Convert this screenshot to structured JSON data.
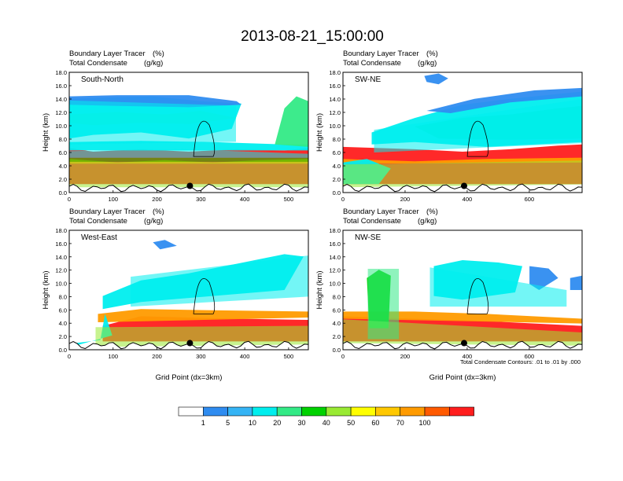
{
  "title": "2013-08-21_15:00:00",
  "colors": {
    "bands": [
      "#ffffff",
      "#2f8cf0",
      "#35b4f5",
      "#00eeee",
      "#33ea86",
      "#00d200",
      "#99ea33",
      "#ffff00",
      "#ffc800",
      "#ff9b00",
      "#ff5a00",
      "#ff1e1e"
    ],
    "contour": "#000000",
    "terrain_line": "#000000"
  },
  "chart_data": {
    "colorbar": {
      "levels": [
        "1",
        "5",
        "10",
        "20",
        "30",
        "40",
        "50",
        "60",
        "70",
        "100"
      ]
    },
    "footnote": "Total Condensate Contours: .01 to .01 by .000",
    "panels": [
      {
        "type": "area",
        "label": "South-North",
        "subtitle_left_1": "Boundary Layer Tracer",
        "subtitle_right_1": "(%)",
        "subtitle_left_2": "Total Condensate",
        "subtitle_right_2": "(g/kg)",
        "ylabel": "Height (km)",
        "xlabel": "",
        "xlim": [
          0,
          545
        ],
        "ylim": [
          0,
          18
        ],
        "xticks": [
          "0",
          "100",
          "200",
          "300",
          "400",
          "500"
        ],
        "yticks": [
          "0.0",
          "2.0",
          "4.0",
          "6.0",
          "8.0",
          "10.0",
          "12.0",
          "14.0",
          "16.0",
          "18.0"
        ],
        "marker_x": 275,
        "marker_y": 1.0,
        "cloud_bands": [
          {
            "level": 6,
            "x": [
              0,
              545
            ],
            "y_bottom": [
              0.8,
              0.8
            ],
            "y_top": [
              4.6,
              4.6
            ]
          },
          {
            "level": 5,
            "x": [
              0,
              545
            ],
            "y_bottom": [
              4.6,
              4.6
            ],
            "y_top": [
              5.2,
              5.2
            ]
          },
          {
            "level": 3,
            "x": [
              0,
              260,
              545
            ],
            "y_bottom": [
              5.2,
              5.2,
              5.2
            ],
            "y_top": [
              6.2,
              6.5,
              5.8
            ]
          },
          {
            "level": 3,
            "x": [
              0,
              380
            ],
            "y_bottom": [
              7.2,
              7.6
            ],
            "y_top": [
              13.8,
              13.0
            ]
          }
        ]
      },
      {
        "type": "area",
        "label": "SW-NE",
        "subtitle_left_1": "Boundary Layer Tracer",
        "subtitle_right_1": "(%)",
        "subtitle_left_2": "Total Condensate",
        "subtitle_right_2": "(g/kg)",
        "ylabel": "Height (km)",
        "xlabel": "",
        "xlim": [
          0,
          770
        ],
        "ylim": [
          0,
          18
        ],
        "xticks": [
          "0",
          "200",
          "400",
          "600"
        ],
        "yticks": [
          "0.0",
          "2.0",
          "4.0",
          "6.0",
          "8.0",
          "10.0",
          "12.0",
          "14.0",
          "16.0",
          "18.0"
        ],
        "marker_x": 390,
        "marker_y": 1.0,
        "cloud_bands": [
          {
            "level": 6,
            "x": [
              0,
              770
            ],
            "y_bottom": [
              0.8,
              1.2
            ],
            "y_top": [
              4.2,
              4.8
            ]
          },
          {
            "level": 3,
            "x": [
              100,
              770
            ],
            "y_bottom": [
              6.0,
              7.4
            ],
            "y_top": [
              9.4,
              14.0
            ]
          }
        ]
      },
      {
        "type": "area",
        "label": "West-East",
        "subtitle_left_1": "Boundary Layer Tracer",
        "subtitle_right_1": "(%)",
        "subtitle_left_2": "Total Condensate",
        "subtitle_right_2": "(g/kg)",
        "ylabel": "Height (km)",
        "xlabel": "Grid Point (dx=3km)",
        "xlim": [
          0,
          545
        ],
        "ylim": [
          0,
          18
        ],
        "xticks": [
          "0",
          "100",
          "200",
          "300",
          "400",
          "500"
        ],
        "yticks": [
          "0.0",
          "2.0",
          "4.0",
          "6.0",
          "8.0",
          "10.0",
          "12.0",
          "14.0",
          "16.0",
          "18.0"
        ],
        "marker_x": 275,
        "marker_y": 1.0,
        "cloud_bands": [
          {
            "level": 6,
            "x": [
              60,
              545
            ],
            "y_bottom": [
              0.4,
              0.8
            ],
            "y_top": [
              3.4,
              3.6
            ]
          },
          {
            "level": 3,
            "x": [
              140,
              545
            ],
            "y_bottom": [
              6.5,
              8.0
            ],
            "y_top": [
              11.0,
              14.2
            ]
          }
        ]
      },
      {
        "type": "area",
        "label": "NW-SE",
        "subtitle_left_1": "Boundary Layer Tracer",
        "subtitle_right_1": "(%)",
        "subtitle_left_2": "Total Condensate",
        "subtitle_right_2": "(g/kg)",
        "ylabel": "Height (km)",
        "xlabel": "Grid Point (dx=3km)",
        "xlim": [
          0,
          770
        ],
        "ylim": [
          0,
          18
        ],
        "xticks": [
          "0",
          "200",
          "400",
          "600"
        ],
        "yticks": [
          "0.0",
          "2.0",
          "4.0",
          "6.0",
          "8.0",
          "10.0",
          "12.0",
          "14.0",
          "16.0",
          "18.0"
        ],
        "marker_x": 390,
        "marker_y": 1.0,
        "cloud_bands": [
          {
            "level": 6,
            "x": [
              0,
              770
            ],
            "y_bottom": [
              1.0,
              0.6
            ],
            "y_top": [
              4.6,
              2.6
            ]
          },
          {
            "level": 3,
            "x": [
              280,
              720
            ],
            "y_bottom": [
              6.5,
              6.5
            ],
            "y_top": [
              12.4,
              9.0
            ]
          },
          {
            "level": 4,
            "x": [
              80,
              180
            ],
            "y_bottom": [
              1.6,
              1.6
            ],
            "y_top": [
              12.2,
              12.2
            ]
          }
        ]
      }
    ]
  }
}
